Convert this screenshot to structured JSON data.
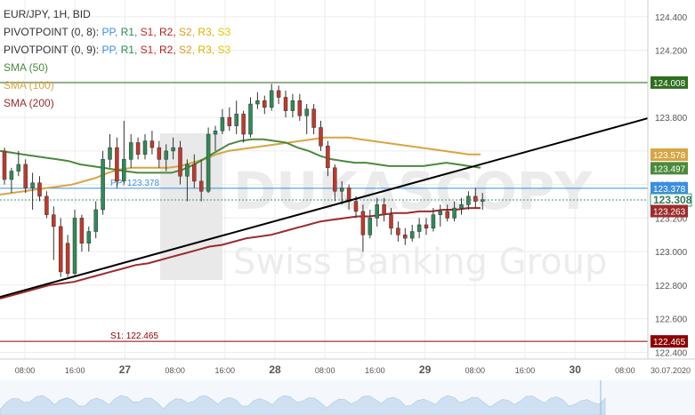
{
  "legend": {
    "symbol": "EUR/JPY, 1H, BID",
    "pivot1": "PIVOTPOINT (0, 8):",
    "pivot2": "PIVOTPOINT (0, 9):",
    "pivot_items": [
      "PP,",
      "R1,",
      "S1,",
      "R2,",
      "S2,",
      "R3,",
      "S3"
    ],
    "sma50": "SMA (50)",
    "sma100": "SMA (100)",
    "sma200": "SMA (200)"
  },
  "watermark": {
    "brand": "DUKASCOPY",
    "sub": "Swiss Banking Group"
  },
  "colors": {
    "up": "#2e8b57",
    "down": "#c0392b",
    "sma50": "#4a8a3a",
    "sma100": "#d9a441",
    "sma200": "#9b2c2c",
    "pp": "#3b8fe0",
    "s1": "#8b0000",
    "res": "#2f6e1f",
    "trend": "#000000",
    "last": "#3c9a7a"
  },
  "chart_data": {
    "type": "candlestick",
    "y_ticks": [
      "124.400",
      "124.200",
      "124.000",
      "123.800",
      "123.600",
      "123.400",
      "123.200",
      "123.000",
      "122.800",
      "122.600",
      "122.400"
    ],
    "ylim": [
      122.36,
      124.5
    ],
    "x_ticks": [
      "08:00",
      "16:00",
      "27",
      "08:00",
      "16:00",
      "28",
      "08:00",
      "16:00",
      "29",
      "08:00",
      "16:00",
      "30",
      "08:00",
      "30.07.2020"
    ],
    "levels": [
      {
        "name": "resistance",
        "value": 124.008,
        "label": "124.008"
      },
      {
        "name": "pivot",
        "value": 123.378,
        "label": "PP: 123.378"
      },
      {
        "name": "support",
        "value": 122.465,
        "label": "S1: 122.465"
      }
    ],
    "badges": [
      {
        "name": "resistance",
        "label": "124.008",
        "value": 124.008
      },
      {
        "name": "sma100",
        "label": "123.578",
        "value": 123.578
      },
      {
        "name": "sma50",
        "label": "123.497",
        "value": 123.497
      },
      {
        "name": "pivot",
        "label": "123.378",
        "value": 123.378
      },
      {
        "name": "current",
        "label": "123.308",
        "value": 123.308
      },
      {
        "name": "sma200",
        "label": "123.263",
        "value": 123.263
      },
      {
        "name": "support",
        "label": "122.465",
        "value": 122.465
      }
    ],
    "candles": [
      [
        123.6,
        123.62,
        123.4,
        123.43
      ],
      [
        123.43,
        123.5,
        123.35,
        123.48
      ],
      [
        123.48,
        123.6,
        123.45,
        123.52
      ],
      [
        123.52,
        123.55,
        123.35,
        123.38
      ],
      [
        123.38,
        123.47,
        123.25,
        123.41
      ],
      [
        123.41,
        123.45,
        123.3,
        123.33
      ],
      [
        123.33,
        123.36,
        123.2,
        123.22
      ],
      [
        123.22,
        123.27,
        122.95,
        123.15
      ],
      [
        123.15,
        123.2,
        122.85,
        122.88
      ],
      [
        123.05,
        123.1,
        122.85,
        122.87
      ],
      [
        122.87,
        123.25,
        122.86,
        123.2
      ],
      [
        123.2,
        123.22,
        123.0,
        123.05
      ],
      [
        123.05,
        123.15,
        123.0,
        123.12
      ],
      [
        123.12,
        123.3,
        123.08,
        123.25
      ],
      [
        123.25,
        123.6,
        123.22,
        123.55
      ],
      [
        123.55,
        123.7,
        123.5,
        123.62
      ],
      [
        123.62,
        123.68,
        123.38,
        123.42
      ],
      [
        123.42,
        123.78,
        123.4,
        123.55
      ],
      [
        123.55,
        123.7,
        123.5,
        123.65
      ],
      [
        123.65,
        123.68,
        123.55,
        123.58
      ],
      [
        123.58,
        123.7,
        123.55,
        123.66
      ],
      [
        123.66,
        123.72,
        123.58,
        123.62
      ],
      [
        123.62,
        123.66,
        123.5,
        123.55
      ],
      [
        123.55,
        123.64,
        123.48,
        123.6
      ],
      [
        123.6,
        123.68,
        123.55,
        123.62
      ],
      [
        123.62,
        123.66,
        123.4,
        123.45
      ],
      [
        123.45,
        123.55,
        123.3,
        123.52
      ],
      [
        123.52,
        123.58,
        123.38,
        123.42
      ],
      [
        123.42,
        123.55,
        123.3,
        123.36
      ],
      [
        123.36,
        123.74,
        123.35,
        123.7
      ],
      [
        123.7,
        123.75,
        123.6,
        123.72
      ],
      [
        123.72,
        123.85,
        123.7,
        123.8
      ],
      [
        123.8,
        123.86,
        123.72,
        123.75
      ],
      [
        123.75,
        123.9,
        123.7,
        123.82
      ],
      [
        123.82,
        123.84,
        123.65,
        123.7
      ],
      [
        123.7,
        123.92,
        123.68,
        123.88
      ],
      [
        123.88,
        123.95,
        123.85,
        123.9
      ],
      [
        123.9,
        123.93,
        123.82,
        123.86
      ],
      [
        123.86,
        124.0,
        123.84,
        123.96
      ],
      [
        123.96,
        123.99,
        123.88,
        123.92
      ],
      [
        123.92,
        123.96,
        123.8,
        123.84
      ],
      [
        123.84,
        123.94,
        123.8,
        123.9
      ],
      [
        123.9,
        123.94,
        123.78,
        123.81
      ],
      [
        123.81,
        123.88,
        123.7,
        123.85
      ],
      [
        123.85,
        123.88,
        123.7,
        123.74
      ],
      [
        123.74,
        123.78,
        123.6,
        123.63
      ],
      [
        123.63,
        123.66,
        123.45,
        123.5
      ],
      [
        123.5,
        123.52,
        123.3,
        123.36
      ],
      [
        123.36,
        123.42,
        123.28,
        123.38
      ],
      [
        123.38,
        123.4,
        123.25,
        123.3
      ],
      [
        123.3,
        123.33,
        123.2,
        123.24
      ],
      [
        123.24,
        123.28,
        123.0,
        123.1
      ],
      [
        123.1,
        123.25,
        123.08,
        123.2
      ],
      [
        123.2,
        123.32,
        123.15,
        123.28
      ],
      [
        123.28,
        123.32,
        123.18,
        123.22
      ],
      [
        123.22,
        123.26,
        123.1,
        123.14
      ],
      [
        123.14,
        123.18,
        123.06,
        123.1
      ],
      [
        123.1,
        123.14,
        123.04,
        123.08
      ],
      [
        123.08,
        123.16,
        123.06,
        123.12
      ],
      [
        123.12,
        123.2,
        123.08,
        123.16
      ],
      [
        123.16,
        123.2,
        123.1,
        123.14
      ],
      [
        123.14,
        123.26,
        123.12,
        123.22
      ],
      [
        123.22,
        123.28,
        123.15,
        123.24
      ],
      [
        123.24,
        123.28,
        123.18,
        123.2
      ],
      [
        123.2,
        123.3,
        123.18,
        123.26
      ],
      [
        123.26,
        123.32,
        123.22,
        123.28
      ],
      [
        123.28,
        123.36,
        123.25,
        123.33
      ],
      [
        123.33,
        123.38,
        123.26,
        123.3
      ],
      [
        123.3,
        123.35,
        123.25,
        123.31
      ]
    ],
    "sma50": [
      123.6,
      123.59,
      123.58,
      123.57,
      123.56,
      123.55,
      123.54,
      123.52,
      123.51,
      123.5,
      123.49,
      123.48,
      123.47,
      123.47,
      123.47,
      123.47,
      123.49,
      123.52,
      123.56,
      123.6,
      123.64,
      123.66,
      123.67,
      123.67,
      123.66,
      123.65,
      123.62,
      123.6,
      123.57,
      123.55,
      123.54,
      123.53,
      123.53,
      123.52,
      123.51,
      123.51,
      123.51,
      123.51,
      123.52,
      123.53,
      123.52,
      123.51,
      123.5
    ],
    "sma100": [
      123.34,
      123.35,
      123.36,
      123.37,
      123.38,
      123.39,
      123.4,
      123.42,
      123.44,
      123.47,
      123.49,
      123.5,
      123.5,
      123.5,
      123.5,
      123.51,
      123.53,
      123.55,
      123.58,
      123.6,
      123.61,
      123.62,
      123.63,
      123.64,
      123.65,
      123.66,
      123.67,
      123.68,
      123.68,
      123.68,
      123.67,
      123.66,
      123.65,
      123.64,
      123.63,
      123.62,
      123.61,
      123.6,
      123.59,
      123.58,
      123.58
    ],
    "sma200": [
      122.72,
      122.74,
      122.76,
      122.78,
      122.8,
      122.81,
      122.82,
      122.84,
      122.86,
      122.88,
      122.9,
      122.92,
      122.93,
      122.95,
      122.97,
      122.99,
      123.01,
      123.03,
      123.04,
      123.06,
      123.08,
      123.09,
      123.1,
      123.12,
      123.14,
      123.16,
      123.18,
      123.19,
      123.2,
      123.21,
      123.21,
      123.22,
      123.23,
      123.23,
      123.24,
      123.24,
      123.25,
      123.25,
      123.26,
      123.26
    ]
  }
}
